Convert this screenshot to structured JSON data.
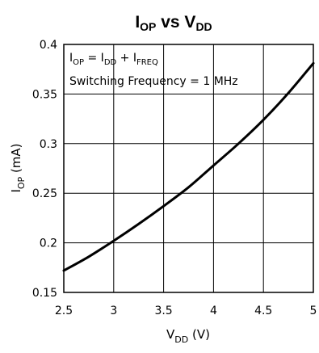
{
  "chart_data": {
    "type": "line",
    "title": {
      "main1": "I",
      "sub1": "OP",
      "mid": " vs V",
      "sub2": "DD"
    },
    "xlabel": {
      "main": "V",
      "sub": "DD",
      "rest": " (V)"
    },
    "ylabel": {
      "main": "I",
      "sub": "OP",
      "rest": " (mA)"
    },
    "xlim": [
      2.5,
      5
    ],
    "ylim": [
      0.15,
      0.4
    ],
    "x_ticks": [
      "2.5",
      "3",
      "3.5",
      "4",
      "4.5",
      "5"
    ],
    "y_ticks": [
      "0.15",
      "0.2",
      "0.25",
      "0.3",
      "0.35",
      "0.4"
    ],
    "grid": true,
    "annotations": {
      "line1": {
        "a": "I",
        "a_sub": "OP",
        "b": " = I",
        "b_sub": "DD",
        "c": " + I",
        "c_sub": "FREQ"
      },
      "line2": "Switching Frequency = 1 MHz"
    },
    "series": [
      {
        "x": [
          2.5,
          2.75,
          3.0,
          3.25,
          3.5,
          3.75,
          4.0,
          4.25,
          4.5,
          4.75,
          5.0
        ],
        "values": [
          0.172,
          0.186,
          0.202,
          0.219,
          0.237,
          0.256,
          0.278,
          0.3,
          0.324,
          0.351,
          0.381
        ]
      }
    ]
  }
}
